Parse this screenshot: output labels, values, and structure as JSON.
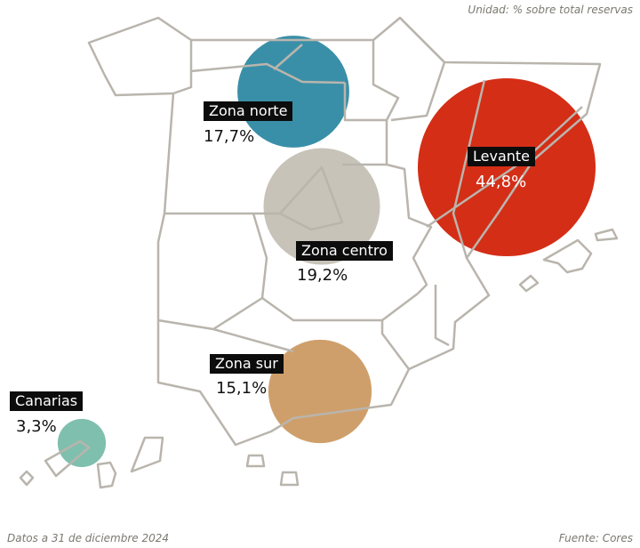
{
  "unit_note": "Unidad: % sobre total reservas",
  "date_note": "Datos a 31 de diciembre 2024",
  "source_note": "Fuente: Cores",
  "border_color": "#b9b5ad",
  "zones": [
    {
      "id": "norte",
      "label": "Zona norte",
      "value": "17,7%",
      "share": 17.7,
      "color": "#3a8fa8"
    },
    {
      "id": "levante",
      "label": "Levante",
      "value": "44,8%",
      "share": 44.8,
      "color": "#d42e17"
    },
    {
      "id": "centro",
      "label": "Zona centro",
      "value": "19,2%",
      "share": 19.2,
      "color": "#c8c3b9"
    },
    {
      "id": "sur",
      "label": "Zona sur",
      "value": "15,1%",
      "share": 15.1,
      "color": "#cf9f6b"
    },
    {
      "id": "canarias",
      "label": "Canarias",
      "value": "3,3%",
      "share": 3.3,
      "color": "#7fbfae"
    }
  ]
}
